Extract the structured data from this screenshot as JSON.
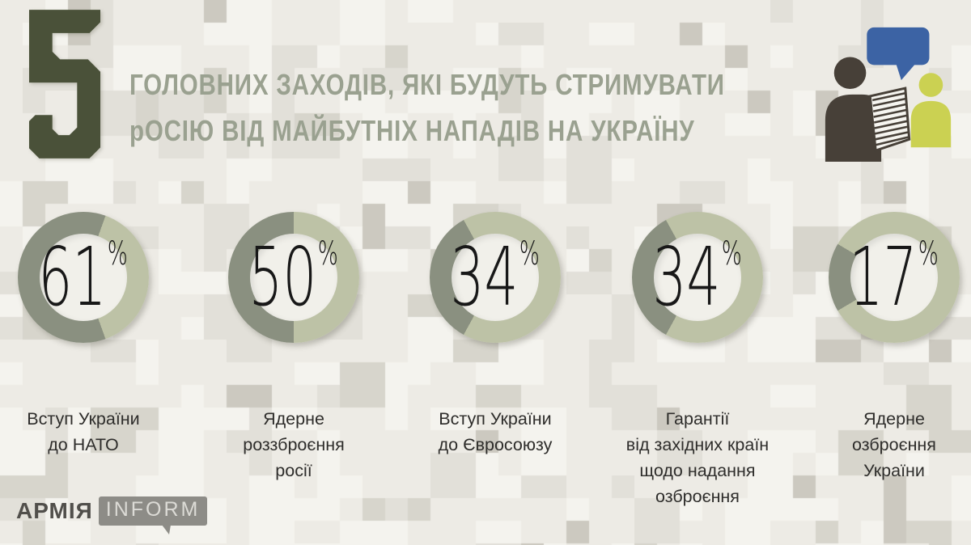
{
  "header": {
    "big_number": "5",
    "title_line1": "ГОЛОВНИХ ЗАХОДІВ, ЯКІ БУДУТЬ СТРИМУВАТИ",
    "title_line2": "рОСІЮ ВІД МАЙБУТНІХ НАПАДІВ НА УКРАЇНУ"
  },
  "chart_data": [
    {
      "type": "pie",
      "value_pct": 61,
      "remainder_pct": 39,
      "suffix": "%",
      "label": "Вступ України\nдо НАТО"
    },
    {
      "type": "pie",
      "value_pct": 50,
      "remainder_pct": 50,
      "suffix": "%",
      "label": "Ядерне\nроззброєння\nросії"
    },
    {
      "type": "pie",
      "value_pct": 34,
      "remainder_pct": 66,
      "suffix": "%",
      "label": "Вступ України\nдо Євросоюзу"
    },
    {
      "type": "pie",
      "value_pct": 34,
      "remainder_pct": 66,
      "suffix": "%",
      "label": "Гарантії\nвід західних країн\nщодо надання\nозброєння"
    },
    {
      "type": "pie",
      "value_pct": 17,
      "remainder_pct": 83,
      "suffix": "%",
      "label": "Ядерне\nозброєння\nУкраїни"
    }
  ],
  "footer": {
    "logo_armiya": "АРМІЯ",
    "logo_inform": "INFORM"
  },
  "icons": {
    "survey_icon": "two-people-talking-with-speech-bubble-and-survey-sheet"
  },
  "colors": {
    "big_number": "#4a5139",
    "title": "#9aa190",
    "ring_filled": "#8a9080",
    "ring_remainder": "#bdc2a6",
    "ring_center": "#f1f0ea",
    "label": "#2e2d2b",
    "logo_dark": "#514f4b",
    "logo_box": "#8d8c87",
    "logo_light": "#dcdbd6",
    "icon_dark": "#474038",
    "icon_blue": "#3c63a4",
    "icon_yellow": "#cbd152",
    "camo": [
      "#f4f3ee",
      "#edebe5",
      "#e2e0d9",
      "#d7d5cc",
      "#ccc9c0"
    ]
  }
}
